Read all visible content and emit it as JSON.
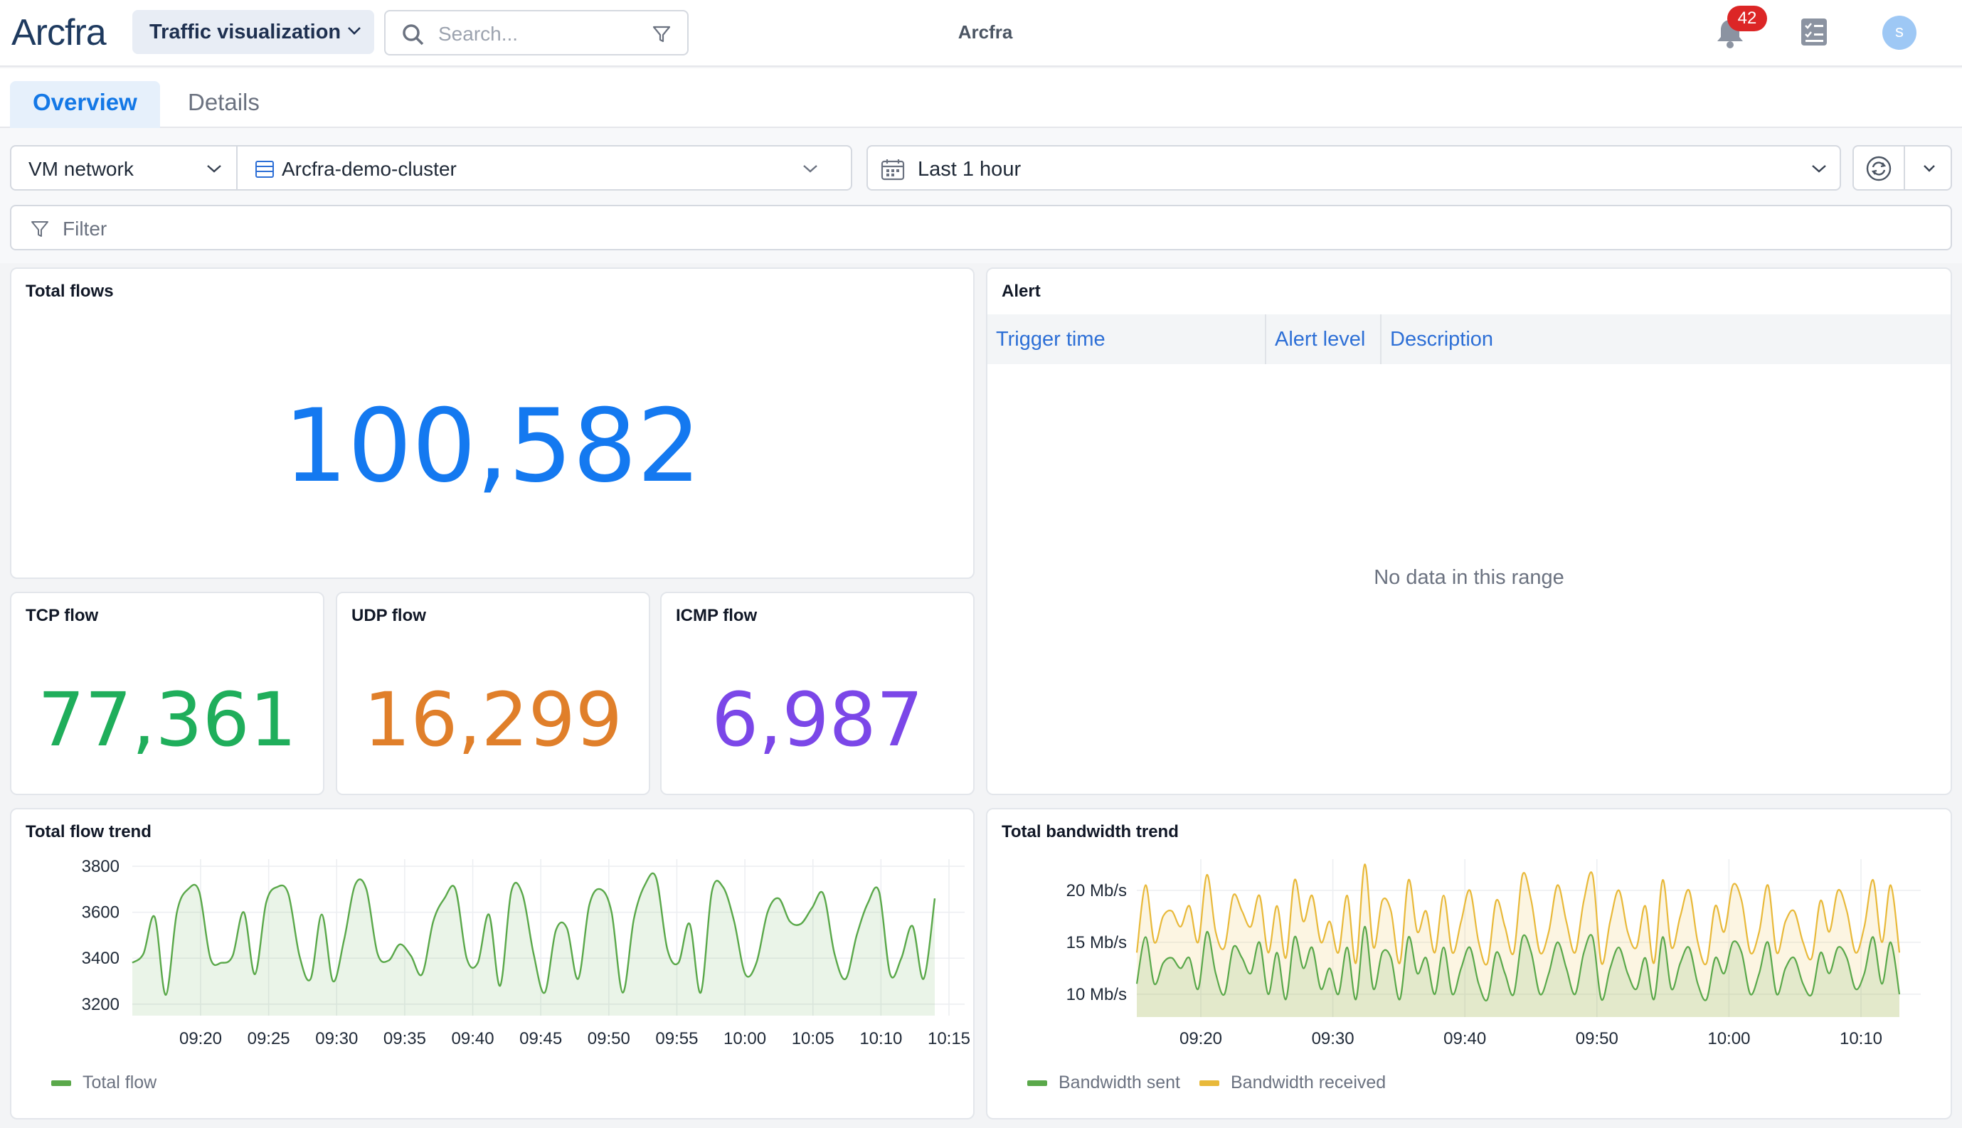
{
  "header": {
    "logo": "Arcfra",
    "app_selector": "Traffic visualization",
    "search_placeholder": "Search...",
    "center_title": "Arcfra",
    "notification_count": "42",
    "avatar_initial": "s"
  },
  "tabs": [
    {
      "label": "Overview",
      "active": true
    },
    {
      "label": "Details",
      "active": false
    }
  ],
  "controls": {
    "network": "VM network",
    "cluster": "Arcfra-demo-cluster",
    "time_range": "Last 1 hour",
    "filter_placeholder": "Filter"
  },
  "total_flows": {
    "title": "Total flows",
    "value": "100,582",
    "color": "#1479f0"
  },
  "tcp": {
    "title": "TCP flow",
    "value": "77,361",
    "color": "#1fae5b"
  },
  "udp": {
    "title": "UDP flow",
    "value": "16,299",
    "color": "#e07f2a"
  },
  "icmp": {
    "title": "ICMP flow",
    "value": "6,987",
    "color": "#7b47e8"
  },
  "alert": {
    "title": "Alert",
    "columns": [
      "Trigger time",
      "Alert level",
      "Description"
    ],
    "empty_text": "No data in this range"
  },
  "flow_trend": {
    "title": "Total flow trend",
    "legend": "Total flow"
  },
  "bandwidth_trend": {
    "title": "Total bandwidth trend",
    "legend_sent": "Bandwidth sent",
    "legend_received": "Bandwidth received"
  },
  "chart_data": [
    {
      "type": "area",
      "title": "Total flow trend",
      "xlabel": "",
      "ylabel": "",
      "x_ticks": [
        "09:20",
        "09:25",
        "09:30",
        "09:35",
        "09:40",
        "09:45",
        "09:50",
        "09:55",
        "10:00",
        "10:05",
        "10:10",
        "10:15"
      ],
      "y_ticks": [
        3200,
        3400,
        3600,
        3800
      ],
      "ylim": [
        3150,
        3800
      ],
      "grid": true,
      "legend_position": "bottom-left",
      "series": [
        {
          "name": "Total flow",
          "color": "#5aa84a",
          "values": [
            3380,
            3420,
            3580,
            3240,
            3600,
            3700,
            3690,
            3400,
            3380,
            3410,
            3600,
            3330,
            3640,
            3710,
            3680,
            3410,
            3310,
            3590,
            3300,
            3480,
            3720,
            3700,
            3420,
            3390,
            3460,
            3410,
            3330,
            3560,
            3660,
            3700,
            3400,
            3380,
            3590,
            3280,
            3690,
            3680,
            3420,
            3250,
            3520,
            3530,
            3310,
            3630,
            3700,
            3600,
            3250,
            3570,
            3720,
            3750,
            3440,
            3380,
            3550,
            3250,
            3690,
            3710,
            3560,
            3330,
            3380,
            3600,
            3660,
            3560,
            3550,
            3620,
            3680,
            3420,
            3310,
            3500,
            3640,
            3690,
            3330,
            3400,
            3540,
            3310,
            3660
          ]
        }
      ]
    },
    {
      "type": "area",
      "title": "Total bandwidth trend",
      "xlabel": "",
      "ylabel": "",
      "x_ticks": [
        "09:20",
        "09:30",
        "09:40",
        "09:50",
        "10:00",
        "10:10"
      ],
      "y_ticks": [
        "10 Mb/s",
        "15 Mb/s",
        "20 Mb/s"
      ],
      "ylim": [
        7.8,
        23
      ],
      "grid": true,
      "legend_position": "bottom-left",
      "series": [
        {
          "name": "Bandwidth received",
          "color": "#e8b93a",
          "values": [
            14,
            20.5,
            15,
            17.5,
            18,
            16.5,
            18.5,
            15,
            21.5,
            16,
            14.5,
            19.5,
            18,
            16.5,
            19.5,
            14,
            18.5,
            13.5,
            21,
            17,
            19.5,
            15,
            17,
            14,
            19.5,
            13,
            22.5,
            14.5,
            19,
            18,
            13,
            21,
            16,
            18,
            14,
            19.5,
            14,
            17,
            20,
            15,
            13,
            19,
            16.5,
            14,
            21.5,
            19,
            14,
            16,
            20.5,
            17,
            14,
            19,
            21.5,
            13,
            17,
            20,
            16,
            14.5,
            18.5,
            13,
            21,
            14.5,
            17.5,
            20,
            15,
            13,
            18.5,
            16,
            20.5,
            19,
            14,
            16,
            20.5,
            14,
            17,
            18,
            15,
            13.5,
            19,
            16,
            20,
            18,
            14,
            16.5,
            21,
            15,
            20.5,
            14
          ]
        },
        {
          "name": "Bandwidth sent",
          "color": "#5aa84a",
          "values": [
            11,
            15.5,
            11,
            13,
            13.5,
            12.5,
            13.5,
            10.5,
            16,
            12,
            10,
            14.5,
            13.5,
            12,
            15,
            10,
            14,
            9.5,
            15.5,
            12.5,
            14.5,
            10.5,
            12.5,
            10,
            14.5,
            9.5,
            16.5,
            10.5,
            14,
            13.5,
            9.5,
            15.5,
            12,
            13.5,
            10,
            14.5,
            10,
            12.5,
            14.5,
            11,
            9.5,
            14,
            12,
            10,
            15.5,
            14,
            10,
            12,
            15,
            12.5,
            10,
            14,
            15.5,
            9.5,
            12.5,
            14.5,
            12,
            10.5,
            13.5,
            9.5,
            15.5,
            10.5,
            13,
            14.5,
            11,
            9.5,
            13.5,
            12,
            15,
            14,
            10,
            12,
            15,
            10,
            12.5,
            13.5,
            11,
            10,
            14,
            12,
            14.5,
            13.5,
            10.5,
            12,
            15.5,
            11,
            15,
            10
          ]
        }
      ]
    }
  ]
}
